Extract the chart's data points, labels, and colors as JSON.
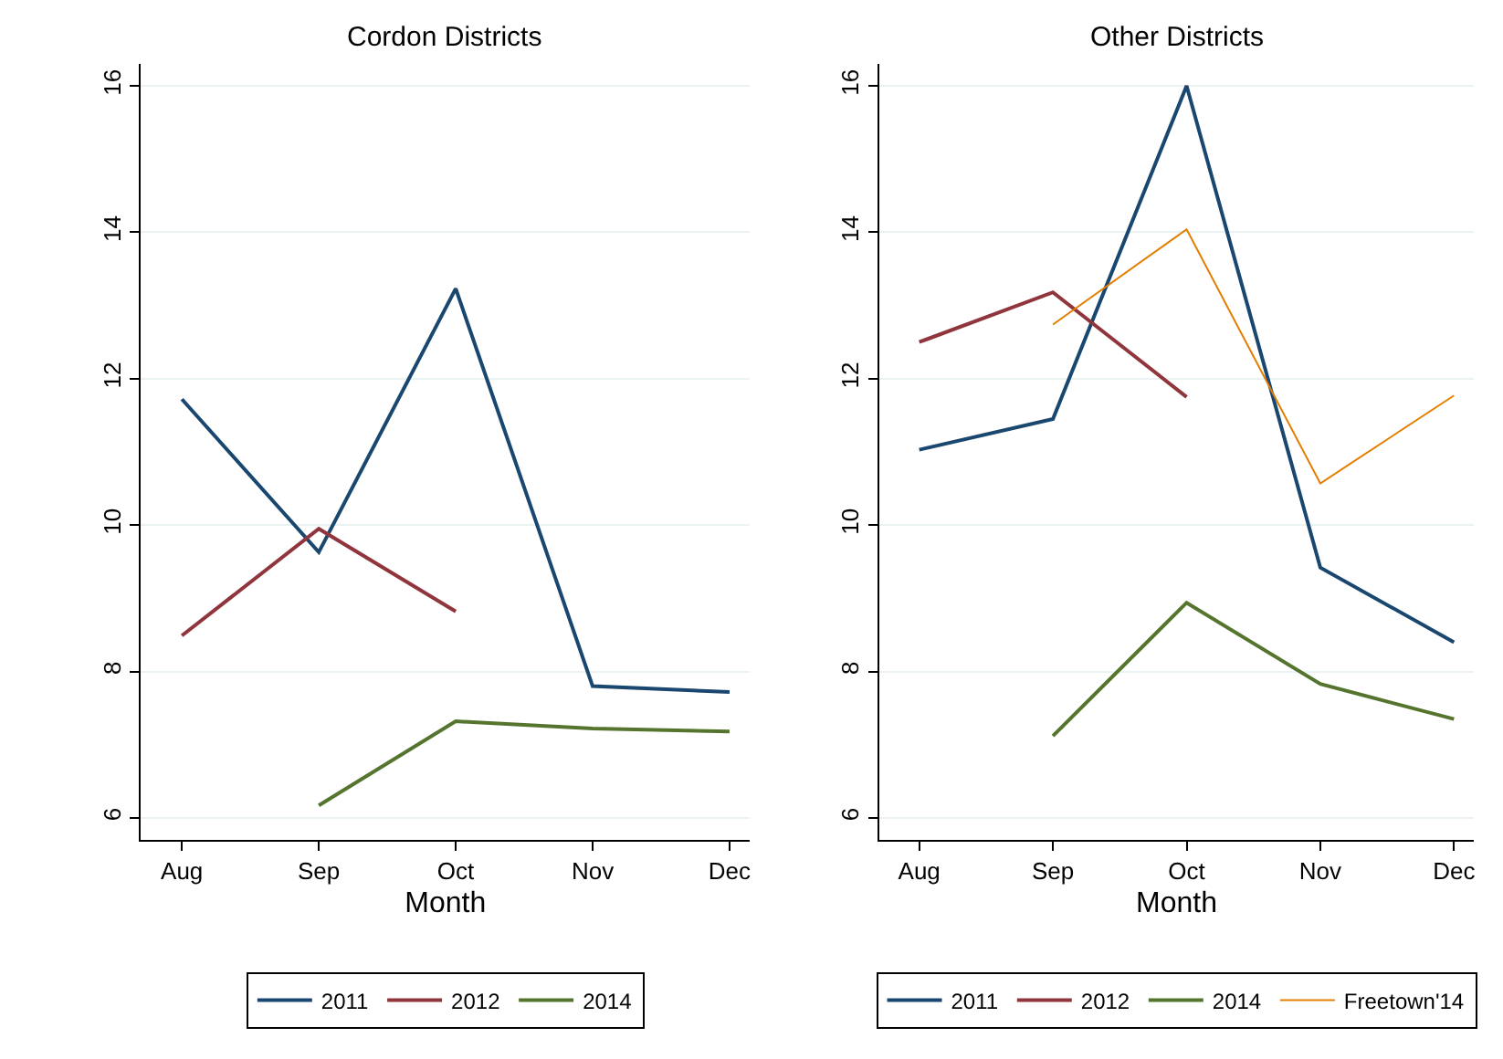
{
  "chart_data": [
    {
      "type": "line",
      "title": "Cordon Districts",
      "xlabel": "Month",
      "categories": [
        "Aug",
        "Sep",
        "Oct",
        "Nov",
        "Dec"
      ],
      "ylim": [
        5.7,
        16.3
      ],
      "yticks": [
        6,
        8,
        10,
        12,
        14,
        16
      ],
      "grid": "y",
      "legend": "bottom",
      "marker": "none",
      "line_style": "solid",
      "series": [
        {
          "name": "2011",
          "color": "#1a476f",
          "values": [
            11.72,
            9.63,
            13.23,
            7.8,
            7.72
          ]
        },
        {
          "name": "2012",
          "color": "#90353b",
          "values": [
            8.49,
            9.95,
            8.82,
            null,
            null
          ]
        },
        {
          "name": "2014",
          "color": "#55752f",
          "values": [
            null,
            6.17,
            7.32,
            7.22,
            7.18
          ]
        }
      ]
    },
    {
      "type": "line",
      "title": "Other Districts",
      "xlabel": "Month",
      "categories": [
        "Aug",
        "Sep",
        "Oct",
        "Nov",
        "Dec"
      ],
      "ylim": [
        5.7,
        16.3
      ],
      "yticks": [
        6,
        8,
        10,
        12,
        14,
        16
      ],
      "grid": "y",
      "legend": "bottom",
      "marker": "none",
      "line_style": "solid",
      "series": [
        {
          "name": "2011",
          "color": "#1a476f",
          "values": [
            11.03,
            11.45,
            16.0,
            9.42,
            8.4
          ]
        },
        {
          "name": "2012",
          "color": "#90353b",
          "values": [
            12.5,
            13.18,
            11.75,
            null,
            null
          ]
        },
        {
          "name": "2014",
          "color": "#55752f",
          "values": [
            null,
            7.12,
            8.94,
            7.83,
            7.35
          ]
        },
        {
          "name": "Freetown'14",
          "color": "#e37e00",
          "values": [
            null,
            12.74,
            14.04,
            10.57,
            11.77
          ]
        }
      ]
    }
  ]
}
